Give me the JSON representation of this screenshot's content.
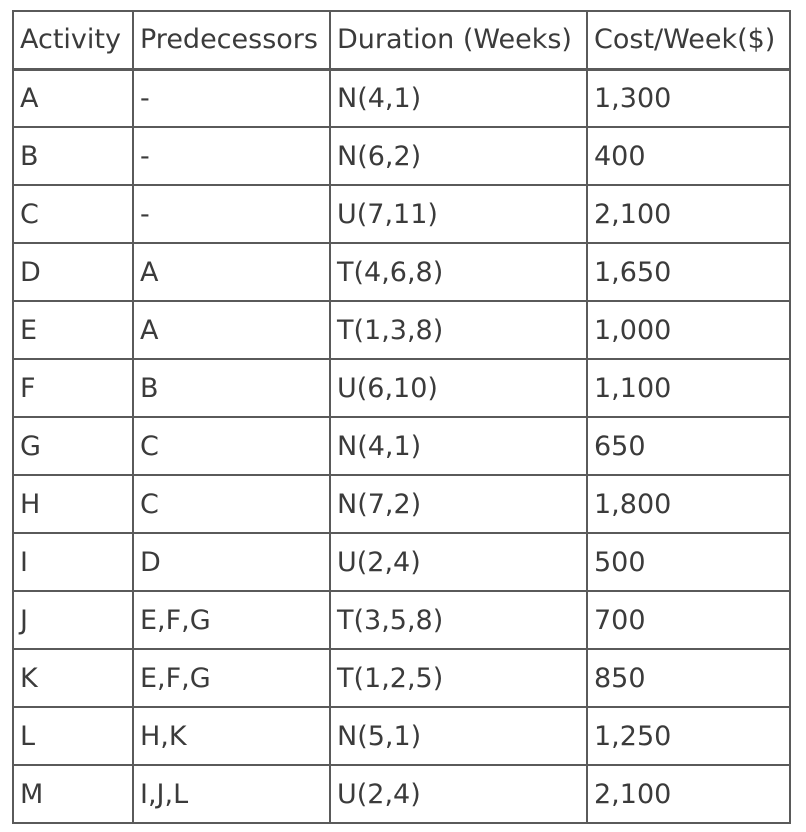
{
  "table": {
    "headers": [
      "Activity",
      "Predecessors",
      "Duration (Weeks)",
      "Cost/Week($)"
    ],
    "rows": [
      {
        "activity": "A",
        "predecessors": "-",
        "duration": "N(4,1)",
        "cost": "1,300"
      },
      {
        "activity": "B",
        "predecessors": "-",
        "duration": "N(6,2)",
        "cost": "400"
      },
      {
        "activity": "C",
        "predecessors": "-",
        "duration": "U(7,11)",
        "cost": "2,100"
      },
      {
        "activity": "D",
        "predecessors": "A",
        "duration": "T(4,6,8)",
        "cost": "1,650"
      },
      {
        "activity": "E",
        "predecessors": "A",
        "duration": "T(1,3,8)",
        "cost": "1,000"
      },
      {
        "activity": "F",
        "predecessors": "B",
        "duration": "U(6,10)",
        "cost": "1,100"
      },
      {
        "activity": "G",
        "predecessors": "C",
        "duration": "N(4,1)",
        "cost": "650"
      },
      {
        "activity": "H",
        "predecessors": "C",
        "duration": "N(7,2)",
        "cost": "1,800"
      },
      {
        "activity": "I",
        "predecessors": "D",
        "duration": "U(2,4)",
        "cost": "500"
      },
      {
        "activity": "J",
        "predecessors": "E,F,G",
        "duration": "T(3,5,8)",
        "cost": "700"
      },
      {
        "activity": "K",
        "predecessors": "E,F,G",
        "duration": "T(1,2,5)",
        "cost": "850"
      },
      {
        "activity": "L",
        "predecessors": "H,K",
        "duration": "N(5,1)",
        "cost": "1,250"
      },
      {
        "activity": "M",
        "predecessors": "I,J,L",
        "duration": "U(2,4)",
        "cost": "2,100"
      }
    ]
  }
}
